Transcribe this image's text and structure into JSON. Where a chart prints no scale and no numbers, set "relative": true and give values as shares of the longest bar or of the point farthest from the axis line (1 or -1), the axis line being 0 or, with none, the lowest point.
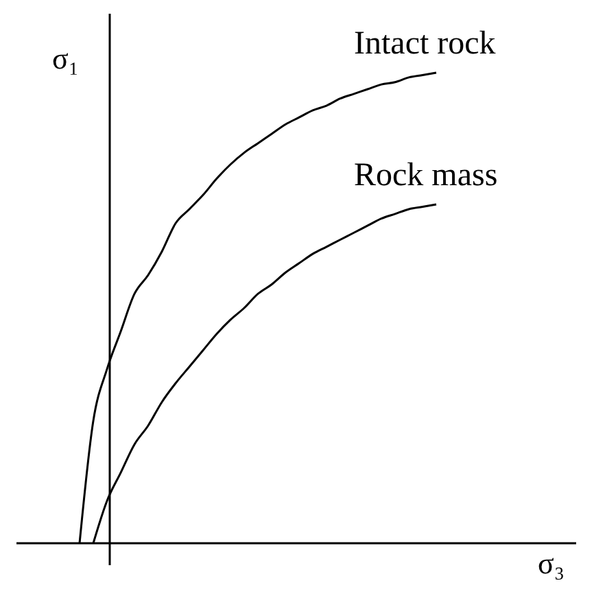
{
  "chart_data": {
    "type": "line",
    "relative": true,
    "xlabel": "σ₃",
    "ylabel": "σ₁",
    "marker": "none",
    "line_style": "solid",
    "categories": [
      null,
      null,
      null,
      null,
      null,
      null,
      null,
      null,
      null,
      null,
      null,
      null,
      null,
      null,
      null,
      null,
      null,
      null,
      null,
      null,
      null,
      null,
      null,
      null,
      null,
      null,
      null
    ],
    "series": [
      {
        "name": "Intact rock",
        "color": "#000000",
        "values": [
          0,
          0.26,
          0.37,
          0.45,
          0.53,
          0.57,
          0.62,
          0.68,
          0.71,
          0.74,
          0.775,
          0.805,
          0.83,
          0.85,
          0.87,
          0.89,
          0.905,
          0.92,
          0.93,
          0.945,
          0.955,
          0.965,
          0.975,
          0.98,
          0.99,
          0.995,
          1
        ]
      },
      {
        "name": "Rock mass",
        "color": "#000000",
        "values": [
          null,
          0,
          0.09,
          0.15,
          0.21,
          0.25,
          0.3,
          0.34,
          0.375,
          0.41,
          0.445,
          0.475,
          0.5,
          0.53,
          0.55,
          0.575,
          0.595,
          0.615,
          0.63,
          0.645,
          0.66,
          0.675,
          0.69,
          0.7,
          0.71,
          0.715,
          0.72
        ]
      }
    ]
  }
}
